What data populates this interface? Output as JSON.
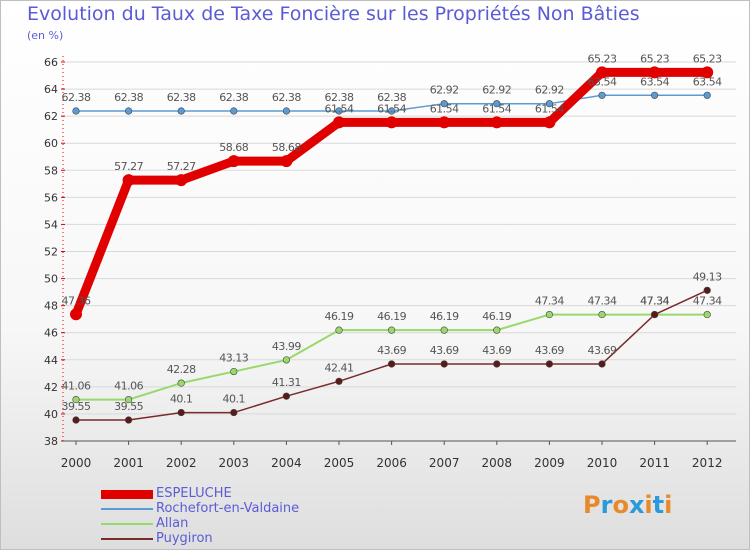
{
  "title": "Evolution du Taux de Taxe Foncière sur les Propriétés Non Bâties",
  "unit_label": "(en %)",
  "logo": {
    "text": "Proxiti",
    "letter_colors": [
      "#e8892a",
      "#2a9ad8",
      "#e8892a",
      "#2a9ad8",
      "#e8892a",
      "#2a9ad8",
      "#e8892a"
    ]
  },
  "chart_data": {
    "type": "line",
    "title": "Evolution du Taux de Taxe Foncière sur les Propriétés Non Bâties",
    "ylabel": "(en %)",
    "xlabel": "",
    "x": [
      "2000",
      "2001",
      "2002",
      "2003",
      "2004",
      "2005",
      "2006",
      "2007",
      "2008",
      "2009",
      "2010",
      "2011",
      "2012"
    ],
    "ylim": [
      38,
      66
    ],
    "yticks": [
      38,
      40,
      42,
      44,
      46,
      48,
      50,
      52,
      54,
      56,
      58,
      60,
      62,
      64,
      66
    ],
    "grid": "horizontal",
    "legend_position": "bottom-left",
    "series": [
      {
        "name": "ESPELUCHE",
        "color": "#e00000",
        "width": 9,
        "values": [
          47.36,
          57.27,
          57.27,
          58.68,
          58.68,
          61.54,
          61.54,
          61.54,
          61.54,
          61.54,
          65.23,
          65.23,
          65.23
        ],
        "labels": [
          "47.36",
          "57.27",
          "57.27",
          "58.68",
          "58.68",
          "61.54",
          "61.54",
          "61.54",
          "61.54",
          "61.54",
          "65.23",
          "65.23",
          "65.23"
        ]
      },
      {
        "name": "Rochefort-en-Valdaine",
        "color": "#5b9bd5",
        "width": 1.5,
        "values": [
          62.38,
          62.38,
          62.38,
          62.38,
          62.38,
          62.38,
          62.38,
          62.92,
          62.92,
          62.92,
          63.54,
          63.54,
          63.54
        ],
        "labels": [
          "62.38",
          "62.38",
          "62.38",
          "62.38",
          "62.38",
          "62.38",
          "62.38",
          "62.92",
          "62.92",
          "62.92",
          "63.54",
          "63.54",
          "63.54"
        ]
      },
      {
        "name": "Allan",
        "color": "#99d86b",
        "width": 2,
        "values": [
          41.06,
          41.06,
          42.28,
          43.13,
          43.99,
          46.19,
          46.19,
          46.19,
          46.19,
          47.34,
          47.34,
          47.34,
          47.34
        ],
        "labels": [
          "41.06",
          "41.06",
          "42.28",
          "43.13",
          "43.99",
          "46.19",
          "46.19",
          "46.19",
          "46.19",
          "47.34",
          "47.34",
          "47.34",
          "47.34"
        ]
      },
      {
        "name": "Puygiron",
        "color": "#7b2a2a",
        "width": 1.5,
        "values": [
          39.55,
          39.55,
          40.1,
          40.1,
          41.31,
          42.41,
          43.69,
          43.69,
          43.69,
          43.69,
          43.69,
          47.34,
          49.13
        ],
        "labels": [
          "39.55",
          "39.55",
          "40.1",
          "40.1",
          "41.31",
          "42.41",
          "43.69",
          "43.69",
          "43.69",
          "43.69",
          "43.69",
          "47.34",
          "49.13"
        ]
      }
    ]
  }
}
